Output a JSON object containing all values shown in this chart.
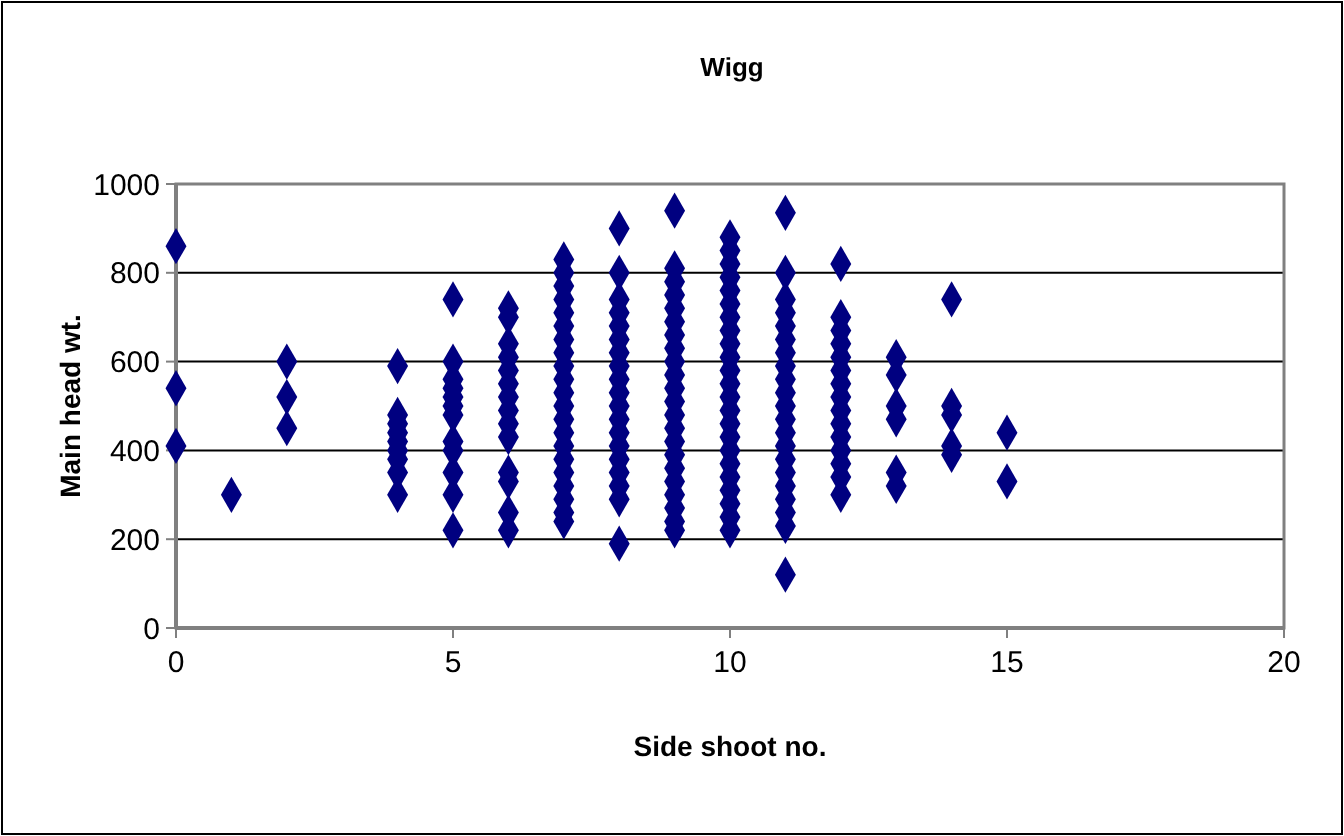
{
  "chart_data": {
    "type": "scatter",
    "title": "Wigg",
    "xlabel": "Side shoot no.",
    "ylabel": "Main head wt.",
    "xlim": [
      0,
      20
    ],
    "xticks": [
      0,
      5,
      10,
      15,
      20
    ],
    "ylim": [
      0,
      1000
    ],
    "yticks": [
      0,
      200,
      400,
      600,
      800,
      1000
    ],
    "grid": "y",
    "marker": "diamond",
    "series": [
      {
        "color": "#000080",
        "x": [
          0,
          0,
          0,
          1,
          2,
          2,
          2,
          4,
          4,
          4,
          4,
          4,
          4,
          4,
          4,
          4,
          5,
          5,
          5,
          5,
          5,
          5,
          5,
          5,
          5,
          5,
          5,
          5,
          6,
          6,
          6,
          6,
          6,
          6,
          6,
          6,
          6,
          6,
          6,
          6,
          6,
          6,
          7,
          7,
          7,
          7,
          7,
          7,
          7,
          7,
          7,
          7,
          7,
          7,
          7,
          7,
          7,
          7,
          7,
          7,
          7,
          7,
          7,
          8,
          8,
          8,
          8,
          8,
          8,
          8,
          8,
          8,
          8,
          8,
          8,
          8,
          8,
          8,
          8,
          8,
          8,
          8,
          9,
          9,
          9,
          9,
          9,
          9,
          9,
          9,
          9,
          9,
          9,
          9,
          9,
          9,
          9,
          9,
          9,
          9,
          9,
          9,
          9,
          9,
          10,
          10,
          10,
          10,
          10,
          10,
          10,
          10,
          10,
          10,
          10,
          10,
          10,
          10,
          10,
          10,
          10,
          10,
          10,
          10,
          10,
          10,
          10,
          11,
          11,
          11,
          11,
          11,
          11,
          11,
          11,
          11,
          11,
          11,
          11,
          11,
          11,
          11,
          11,
          11,
          11,
          11,
          11,
          11,
          12,
          12,
          12,
          12,
          12,
          12,
          12,
          12,
          12,
          12,
          12,
          12,
          12,
          12,
          12,
          13,
          13,
          13,
          13,
          13,
          13,
          14,
          14,
          14,
          14,
          14,
          15,
          15
        ],
        "values": [
          860,
          540,
          410,
          300,
          600,
          520,
          450,
          590,
          480,
          460,
          440,
          420,
          400,
          380,
          350,
          300,
          740,
          600,
          560,
          540,
          520,
          500,
          480,
          420,
          400,
          350,
          300,
          220,
          720,
          700,
          640,
          610,
          580,
          550,
          520,
          490,
          460,
          430,
          350,
          330,
          260,
          220,
          830,
          800,
          770,
          740,
          710,
          680,
          650,
          620,
          590,
          560,
          530,
          500,
          470,
          440,
          410,
          380,
          350,
          320,
          290,
          260,
          240,
          900,
          800,
          740,
          710,
          680,
          650,
          620,
          590,
          560,
          530,
          500,
          470,
          440,
          410,
          380,
          350,
          320,
          290,
          190,
          940,
          810,
          780,
          750,
          720,
          690,
          660,
          630,
          600,
          570,
          540,
          510,
          480,
          450,
          420,
          390,
          360,
          330,
          300,
          270,
          240,
          220,
          880,
          850,
          820,
          790,
          760,
          730,
          700,
          670,
          640,
          610,
          580,
          550,
          520,
          490,
          460,
          430,
          400,
          370,
          340,
          310,
          280,
          250,
          220,
          935,
          800,
          740,
          710,
          680,
          650,
          620,
          590,
          560,
          530,
          500,
          470,
          440,
          410,
          380,
          350,
          320,
          290,
          260,
          230,
          120,
          820,
          700,
          670,
          640,
          610,
          580,
          550,
          520,
          490,
          460,
          430,
          400,
          370,
          340,
          300,
          610,
          570,
          500,
          470,
          350,
          320,
          740,
          500,
          480,
          410,
          390,
          440,
          330
        ]
      }
    ]
  }
}
